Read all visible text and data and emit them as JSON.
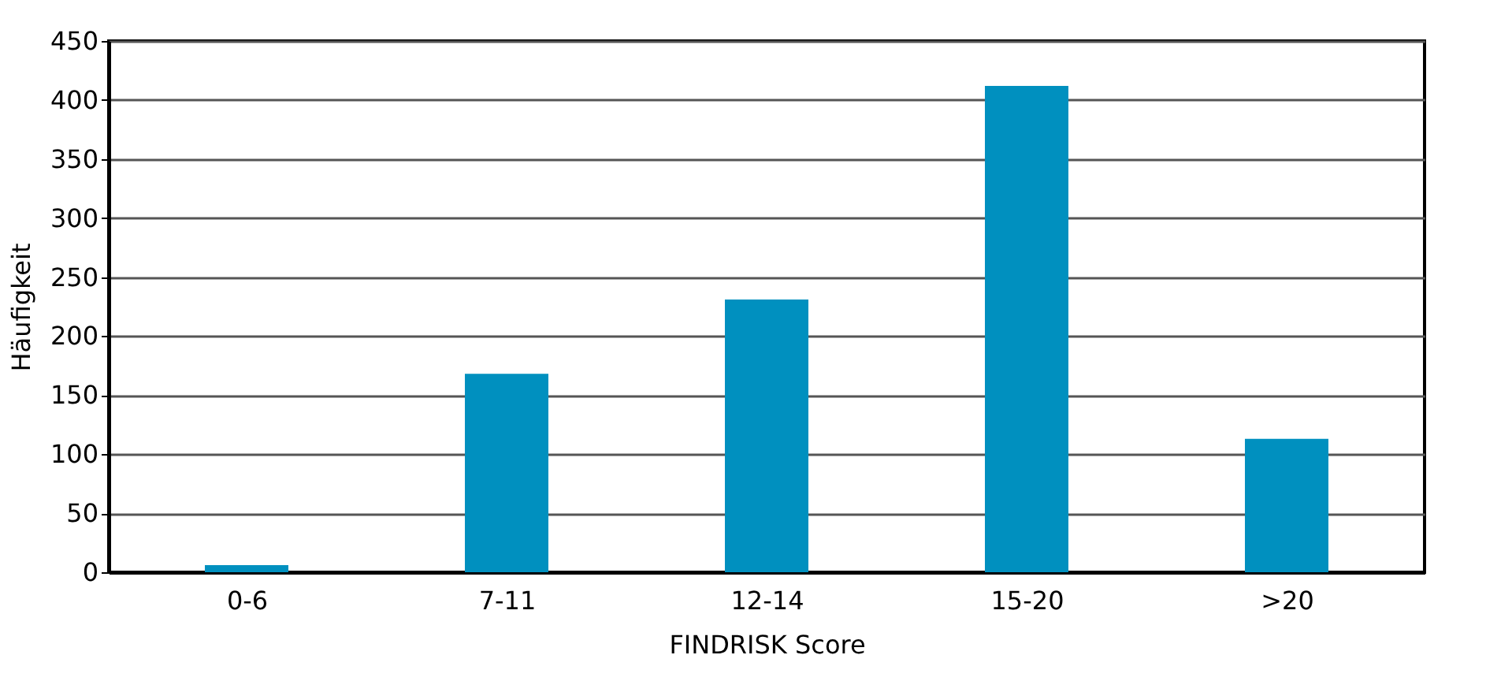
{
  "chart_data": {
    "type": "bar",
    "xlabel": "FINDRISK Score",
    "ylabel": "Häufigkeit",
    "categories": [
      "0-6",
      "7-11",
      "12-14",
      "15-20",
      ">20"
    ],
    "series": [
      {
        "color": "#0090bf",
        "values": [
          6,
          168,
          231,
          412,
          113
        ]
      }
    ],
    "ylim": [
      0,
      450
    ],
    "yticks": [
      0,
      50,
      100,
      150,
      200,
      250,
      300,
      350,
      400,
      450
    ],
    "grid": "y"
  }
}
